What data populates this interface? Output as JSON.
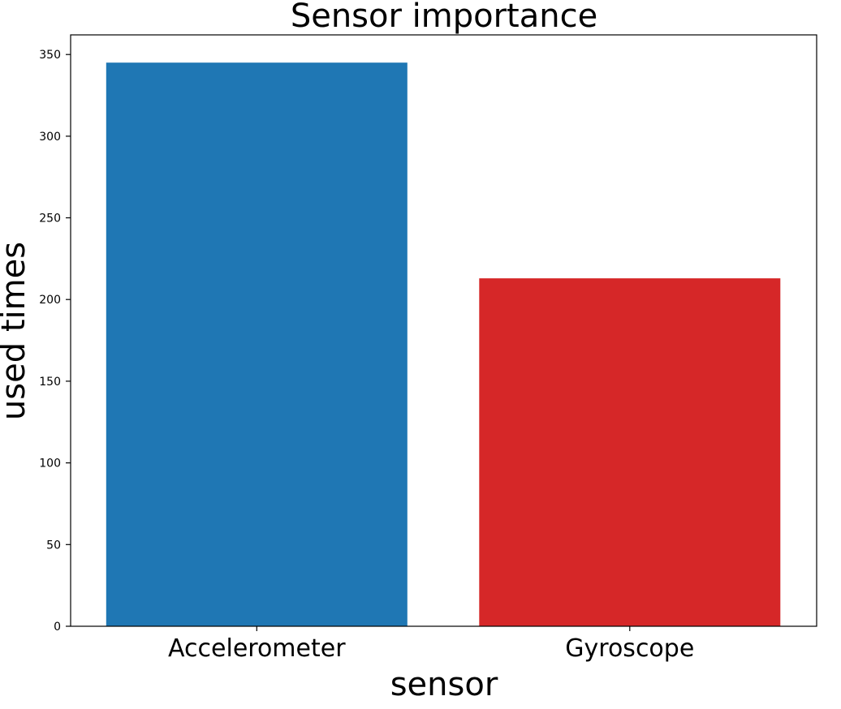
{
  "chart_data": {
    "type": "bar",
    "title": "Sensor importance",
    "xlabel": "sensor",
    "ylabel": "used times",
    "categories": [
      "Accelerometer",
      "Gyroscope"
    ],
    "values": [
      345,
      213
    ],
    "colors": [
      "#1f77b4",
      "#d62728"
    ],
    "ylim": [
      0,
      362
    ],
    "yticks": [
      0,
      50,
      100,
      150,
      200,
      250,
      300,
      350
    ],
    "grid": false,
    "legend": "none"
  }
}
